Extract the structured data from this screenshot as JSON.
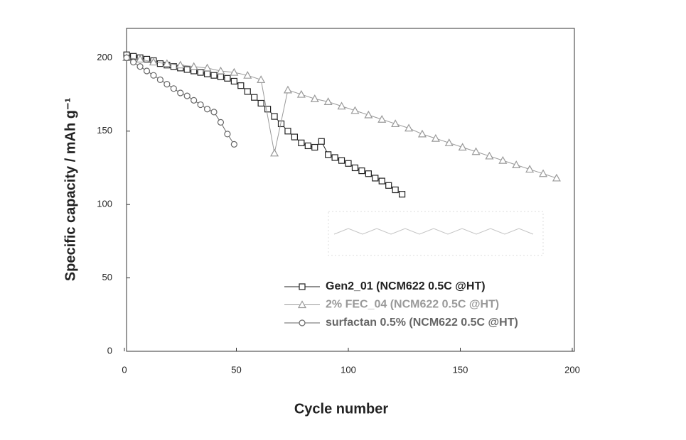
{
  "chart_data": {
    "type": "line",
    "xlabel": "Cycle number",
    "ylabel": "Specific capacity / mAh g⁻¹",
    "xlim": [
      0,
      200
    ],
    "ylim": [
      0,
      220
    ],
    "xticks": [
      0,
      50,
      100,
      150,
      200
    ],
    "yticks": [
      0,
      50,
      100,
      150,
      200
    ],
    "series": [
      {
        "name": "Gen2_01 (NCM622 0.5C @HT)",
        "color": "#222222",
        "marker": "square",
        "x": [
          1,
          4,
          7,
          10,
          13,
          16,
          19,
          22,
          25,
          28,
          31,
          34,
          37,
          40,
          43,
          46,
          49,
          52,
          55,
          58,
          61,
          64,
          67,
          70,
          73,
          76,
          79,
          82,
          85,
          88,
          91,
          94,
          97,
          100,
          103,
          106,
          109,
          112,
          115,
          118,
          121,
          124
        ],
        "values": [
          202,
          201,
          200,
          199,
          198,
          196,
          195,
          194,
          193,
          192,
          191,
          190,
          189,
          188,
          187,
          186,
          184,
          181,
          177,
          173,
          169,
          165,
          160,
          155,
          150,
          146,
          142,
          140,
          139,
          143,
          134,
          132,
          130,
          128,
          125,
          123,
          121,
          118,
          116,
          113,
          110,
          107
        ]
      },
      {
        "name": "2% FEC_04 (NCM622 0.5C @HT)",
        "color": "#999999",
        "marker": "triangle",
        "x": [
          1,
          7,
          13,
          19,
          25,
          31,
          37,
          43,
          49,
          55,
          61,
          67,
          73,
          79,
          85,
          91,
          97,
          103,
          109,
          115,
          121,
          127,
          133,
          139,
          145,
          151,
          157,
          163,
          169,
          175,
          181,
          187,
          193
        ],
        "values": [
          200,
          199,
          197,
          196,
          195,
          194,
          193,
          191,
          190,
          188,
          185,
          135,
          178,
          175,
          172,
          170,
          167,
          164,
          161,
          158,
          155,
          152,
          148,
          145,
          142,
          139,
          136,
          133,
          130,
          127,
          124,
          121,
          118
        ]
      },
      {
        "name": "surfactan 0.5% (NCM622 0.5C @HT)",
        "color": "#666666",
        "marker": "circle",
        "x": [
          1,
          4,
          7,
          10,
          13,
          16,
          19,
          22,
          25,
          28,
          31,
          34,
          37,
          40,
          43,
          46,
          49
        ],
        "values": [
          200,
          197,
          194,
          191,
          188,
          185,
          182,
          179,
          176,
          174,
          171,
          168,
          165,
          163,
          156,
          148,
          141
        ]
      }
    ]
  }
}
